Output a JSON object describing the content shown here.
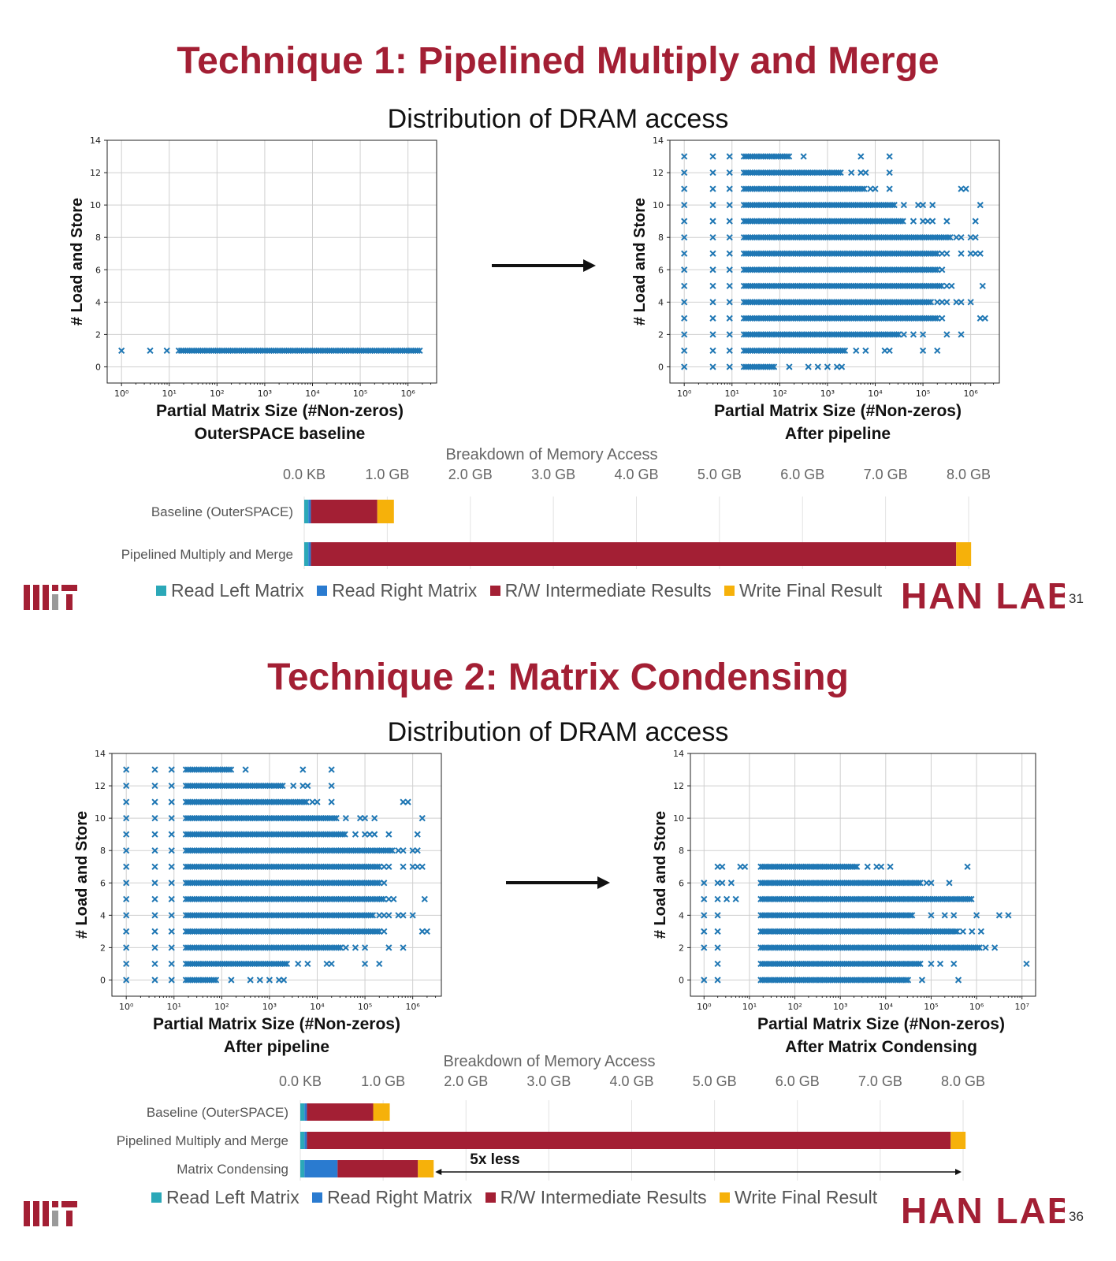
{
  "colors": {
    "title": "#a31f34",
    "scatter_marker": "#1f77b4",
    "read_left": "#2ba8b8",
    "read_right": "#2a7bd0",
    "rw_intermediate": "#a31f34",
    "write_final": "#f6b10a",
    "logo": "#a31f34"
  },
  "slides": [
    {
      "title": "Technique 1: Pipelined Multiply and Merge",
      "subtitle": "Distribution of DRAM access",
      "left_plot": {
        "xlabel": "Partial Matrix Size (#Non-zeros)",
        "caption": "OuterSPACE baseline",
        "ylabel": "# Load and Store"
      },
      "right_plot": {
        "xlabel": "Partial Matrix Size (#Non-zeros)",
        "caption": "After pipeline",
        "ylabel": "# Load and Store"
      },
      "bar_title": "Breakdown of Memory Access",
      "legend": [
        "Read Left Matrix",
        "Read Right Matrix",
        "R/W Intermediate Results",
        "Write Final Result"
      ],
      "logo_text": "HAN LAB",
      "page_number": "31"
    },
    {
      "title": "Technique 2: Matrix Condensing",
      "subtitle": "Distribution of DRAM access",
      "left_plot": {
        "xlabel": "Partial Matrix Size (#Non-zeros)",
        "caption": "After pipeline",
        "ylabel": "# Load and Store"
      },
      "right_plot": {
        "xlabel": "Partial Matrix Size (#Non-zeros)",
        "caption": "After Matrix Condensing",
        "ylabel": "# Load and Store"
      },
      "bar_title": "Breakdown of Memory Access",
      "legend": [
        "Read Left Matrix",
        "Read Right Matrix",
        "R/W Intermediate Results",
        "Write Final Result"
      ],
      "annotation": "5x less",
      "logo_text": "HAN LAB",
      "page_number": "36"
    }
  ],
  "chart_data": [
    {
      "id": "s1_scatter_left",
      "type": "scatter",
      "xlabel": "Partial Matrix Size (#Non-zeros)",
      "ylabel": "# Load and Store",
      "xscale": "log",
      "xlim_exp": [
        -0.3,
        6.6
      ],
      "ylim": [
        -1,
        14
      ],
      "xtick_exp": [
        0,
        1,
        2,
        3,
        4,
        5,
        6
      ],
      "yticks": [
        0,
        2,
        4,
        6,
        8,
        10,
        12,
        14
      ],
      "grid": true,
      "rows": [
        {
          "y": 1,
          "max_exp": 6.26,
          "sparse": [
            0,
            0.6,
            0.95,
            1.2
          ]
        }
      ]
    },
    {
      "id": "s1_scatter_right",
      "type": "scatter",
      "xlabel": "Partial Matrix Size (#Non-zeros)",
      "ylabel": "# Load and Store",
      "xscale": "log",
      "xlim_exp": [
        -0.3,
        6.6
      ],
      "ylim": [
        -1,
        14
      ],
      "xtick_exp": [
        0,
        1,
        2,
        3,
        4,
        5,
        6
      ],
      "yticks": [
        0,
        2,
        4,
        6,
        8,
        10,
        12,
        14
      ],
      "grid": true,
      "rows": [
        {
          "y": 13,
          "max_exp": 2.2,
          "sparse": [
            0,
            0.6,
            0.95,
            2.5,
            3.7,
            4.3
          ]
        },
        {
          "y": 12,
          "max_exp": 3.3,
          "sparse": [
            0,
            0.6,
            0.95,
            3.5,
            3.7,
            3.8,
            4.3
          ]
        },
        {
          "y": 11,
          "max_exp": 3.8,
          "sparse": [
            0,
            0.6,
            0.95,
            3.9,
            4.0,
            4.3,
            5.8,
            5.9
          ]
        },
        {
          "y": 10,
          "max_exp": 4.4,
          "sparse": [
            0,
            0.6,
            0.95,
            4.6,
            4.9,
            5.0,
            5.2,
            6.2
          ]
        },
        {
          "y": 9,
          "max_exp": 4.6,
          "sparse": [
            0,
            0.6,
            0.95,
            4.8,
            5.0,
            5.1,
            5.2,
            5.5,
            6.1
          ]
        },
        {
          "y": 8,
          "max_exp": 5.6,
          "sparse": [
            0,
            0.6,
            0.95,
            5.7,
            5.8,
            6.0,
            6.1
          ]
        },
        {
          "y": 7,
          "max_exp": 5.3,
          "sparse": [
            0,
            0.6,
            0.95,
            5.4,
            5.5,
            5.8,
            6.0,
            6.1,
            6.2
          ]
        },
        {
          "y": 6,
          "max_exp": 5.3,
          "sparse": [
            0,
            0.6,
            0.95,
            5.4
          ]
        },
        {
          "y": 5,
          "max_exp": 5.4,
          "sparse": [
            0,
            0.6,
            0.95,
            5.5,
            5.6,
            6.25
          ]
        },
        {
          "y": 4,
          "max_exp": 5.2,
          "sparse": [
            0,
            0.6,
            0.95,
            5.3,
            5.4,
            5.5,
            5.7,
            5.8,
            6.0
          ]
        },
        {
          "y": 3,
          "max_exp": 5.3,
          "sparse": [
            0,
            0.6,
            0.95,
            5.4,
            6.2,
            6.3
          ]
        },
        {
          "y": 2,
          "max_exp": 4.5,
          "sparse": [
            0,
            0.6,
            0.95,
            4.6,
            4.8,
            5.0,
            5.5,
            5.8
          ]
        },
        {
          "y": 1,
          "max_exp": 3.4,
          "sparse": [
            0,
            0.6,
            0.95,
            3.6,
            3.8,
            4.2,
            4.3,
            5.0,
            5.3
          ]
        },
        {
          "y": 0,
          "max_exp": 1.9,
          "sparse": [
            0,
            0.6,
            0.95,
            2.2,
            2.6,
            2.8,
            3.0,
            3.2,
            3.3
          ]
        }
      ]
    },
    {
      "id": "s1_bar",
      "type": "bar",
      "orientation": "horizontal",
      "stacked": true,
      "title": "Breakdown of Memory Access",
      "xlim_gb": [
        0,
        8.0
      ],
      "xticks": [
        "0.0 KB",
        "1.0 GB",
        "2.0 GB",
        "3.0 GB",
        "4.0 GB",
        "5.0 GB",
        "6.0 GB",
        "7.0 GB",
        "8.0 GB"
      ],
      "categories": [
        "Baseline (OuterSPACE)",
        "Pipelined Multiply and Merge"
      ],
      "series": [
        {
          "name": "Read Left Matrix",
          "values": [
            0.05,
            0.05
          ]
        },
        {
          "name": "Read Right Matrix",
          "values": [
            0.03,
            0.03
          ]
        },
        {
          "name": "R/W Intermediate Results",
          "values": [
            0.8,
            7.77
          ]
        },
        {
          "name": "Write Final Result",
          "values": [
            0.2,
            0.18
          ]
        }
      ]
    },
    {
      "id": "s2_scatter_left",
      "type": "scatter",
      "xlabel": "Partial Matrix Size (#Non-zeros)",
      "ylabel": "# Load and Store",
      "xscale": "log",
      "xlim_exp": [
        -0.3,
        6.6
      ],
      "ylim": [
        -1,
        14
      ],
      "xtick_exp": [
        0,
        1,
        2,
        3,
        4,
        5,
        6
      ],
      "yticks": [
        0,
        2,
        4,
        6,
        8,
        10,
        12,
        14
      ],
      "grid": true,
      "rows": [
        {
          "y": 13,
          "max_exp": 2.2,
          "sparse": [
            0,
            0.6,
            0.95,
            2.5,
            3.7,
            4.3
          ]
        },
        {
          "y": 12,
          "max_exp": 3.3,
          "sparse": [
            0,
            0.6,
            0.95,
            3.5,
            3.7,
            3.8,
            4.3
          ]
        },
        {
          "y": 11,
          "max_exp": 3.8,
          "sparse": [
            0,
            0.6,
            0.95,
            3.9,
            4.0,
            4.3,
            5.8,
            5.9
          ]
        },
        {
          "y": 10,
          "max_exp": 4.4,
          "sparse": [
            0,
            0.6,
            0.95,
            4.6,
            4.9,
            5.0,
            5.2,
            6.2
          ]
        },
        {
          "y": 9,
          "max_exp": 4.6,
          "sparse": [
            0,
            0.6,
            0.95,
            4.8,
            5.0,
            5.1,
            5.2,
            5.5,
            6.1
          ]
        },
        {
          "y": 8,
          "max_exp": 5.6,
          "sparse": [
            0,
            0.6,
            0.95,
            5.7,
            5.8,
            6.0,
            6.1
          ]
        },
        {
          "y": 7,
          "max_exp": 5.3,
          "sparse": [
            0,
            0.6,
            0.95,
            5.4,
            5.5,
            5.8,
            6.0,
            6.1,
            6.2
          ]
        },
        {
          "y": 6,
          "max_exp": 5.3,
          "sparse": [
            0,
            0.6,
            0.95,
            5.4
          ]
        },
        {
          "y": 5,
          "max_exp": 5.4,
          "sparse": [
            0,
            0.6,
            0.95,
            5.5,
            5.6,
            6.25
          ]
        },
        {
          "y": 4,
          "max_exp": 5.2,
          "sparse": [
            0,
            0.6,
            0.95,
            5.3,
            5.4,
            5.5,
            5.7,
            5.8,
            6.0
          ]
        },
        {
          "y": 3,
          "max_exp": 5.3,
          "sparse": [
            0,
            0.6,
            0.95,
            5.4,
            6.2,
            6.3
          ]
        },
        {
          "y": 2,
          "max_exp": 4.5,
          "sparse": [
            0,
            0.6,
            0.95,
            4.6,
            4.8,
            5.0,
            5.5,
            5.8
          ]
        },
        {
          "y": 1,
          "max_exp": 3.4,
          "sparse": [
            0,
            0.6,
            0.95,
            3.6,
            3.8,
            4.2,
            4.3,
            5.0,
            5.3
          ]
        },
        {
          "y": 0,
          "max_exp": 1.9,
          "sparse": [
            0,
            0.6,
            0.95,
            2.2,
            2.6,
            2.8,
            3.0,
            3.2,
            3.3
          ]
        }
      ]
    },
    {
      "id": "s2_scatter_right",
      "type": "scatter",
      "xlabel": "Partial Matrix Size (#Non-zeros)",
      "ylabel": "# Load and Store",
      "xscale": "log",
      "xlim_exp": [
        -0.3,
        7.3
      ],
      "ylim": [
        -1,
        14
      ],
      "xtick_exp": [
        0,
        1,
        2,
        3,
        4,
        5,
        6,
        7
      ],
      "yticks": [
        0,
        2,
        4,
        6,
        8,
        10,
        12,
        14
      ],
      "grid": true,
      "rows": [
        {
          "y": 7,
          "max_exp": 3.4,
          "sparse": [
            0.3,
            0.4,
            0.8,
            0.9,
            3.6,
            3.8,
            3.9,
            4.1,
            5.8
          ]
        },
        {
          "y": 6,
          "max_exp": 4.8,
          "sparse": [
            0,
            0.3,
            0.4,
            0.6,
            4.9,
            5.0,
            5.4
          ]
        },
        {
          "y": 5,
          "max_exp": 5.9,
          "sparse": [
            0,
            0.3,
            0.5,
            0.7
          ]
        },
        {
          "y": 4,
          "max_exp": 4.6,
          "sparse": [
            0,
            0.3,
            5.0,
            5.3,
            5.5,
            6.0,
            6.5,
            6.7
          ]
        },
        {
          "y": 3,
          "max_exp": 5.6,
          "sparse": [
            0,
            0.3,
            5.7,
            5.9,
            6.1
          ]
        },
        {
          "y": 2,
          "max_exp": 6.1,
          "sparse": [
            0,
            0.3,
            6.2,
            6.4
          ]
        },
        {
          "y": 1,
          "max_exp": 4.8,
          "sparse": [
            0.3,
            5.0,
            5.2,
            5.5,
            7.1
          ]
        },
        {
          "y": 0,
          "max_exp": 4.5,
          "sparse": [
            0,
            0.3,
            4.8,
            5.6
          ]
        }
      ]
    },
    {
      "id": "s2_bar",
      "type": "bar",
      "orientation": "horizontal",
      "stacked": true,
      "title": "Breakdown of Memory Access",
      "xlim_gb": [
        0,
        8.0
      ],
      "xticks": [
        "0.0 KB",
        "1.0 GB",
        "2.0 GB",
        "3.0 GB",
        "4.0 GB",
        "5.0 GB",
        "6.0 GB",
        "7.0 GB",
        "8.0 GB"
      ],
      "categories": [
        "Baseline (OuterSPACE)",
        "Pipelined Multiply and Merge",
        "Matrix Condensing"
      ],
      "series": [
        {
          "name": "Read Left Matrix",
          "values": [
            0.05,
            0.05,
            0.05
          ]
        },
        {
          "name": "Read Right Matrix",
          "values": [
            0.03,
            0.03,
            0.4
          ]
        },
        {
          "name": "R/W Intermediate Results",
          "values": [
            0.8,
            7.77,
            0.97
          ]
        },
        {
          "name": "Write Final Result",
          "values": [
            0.2,
            0.18,
            0.19
          ]
        }
      ],
      "annotation": {
        "text": "5x less",
        "from_gb": 1.61,
        "to_gb": 8.0
      }
    }
  ]
}
